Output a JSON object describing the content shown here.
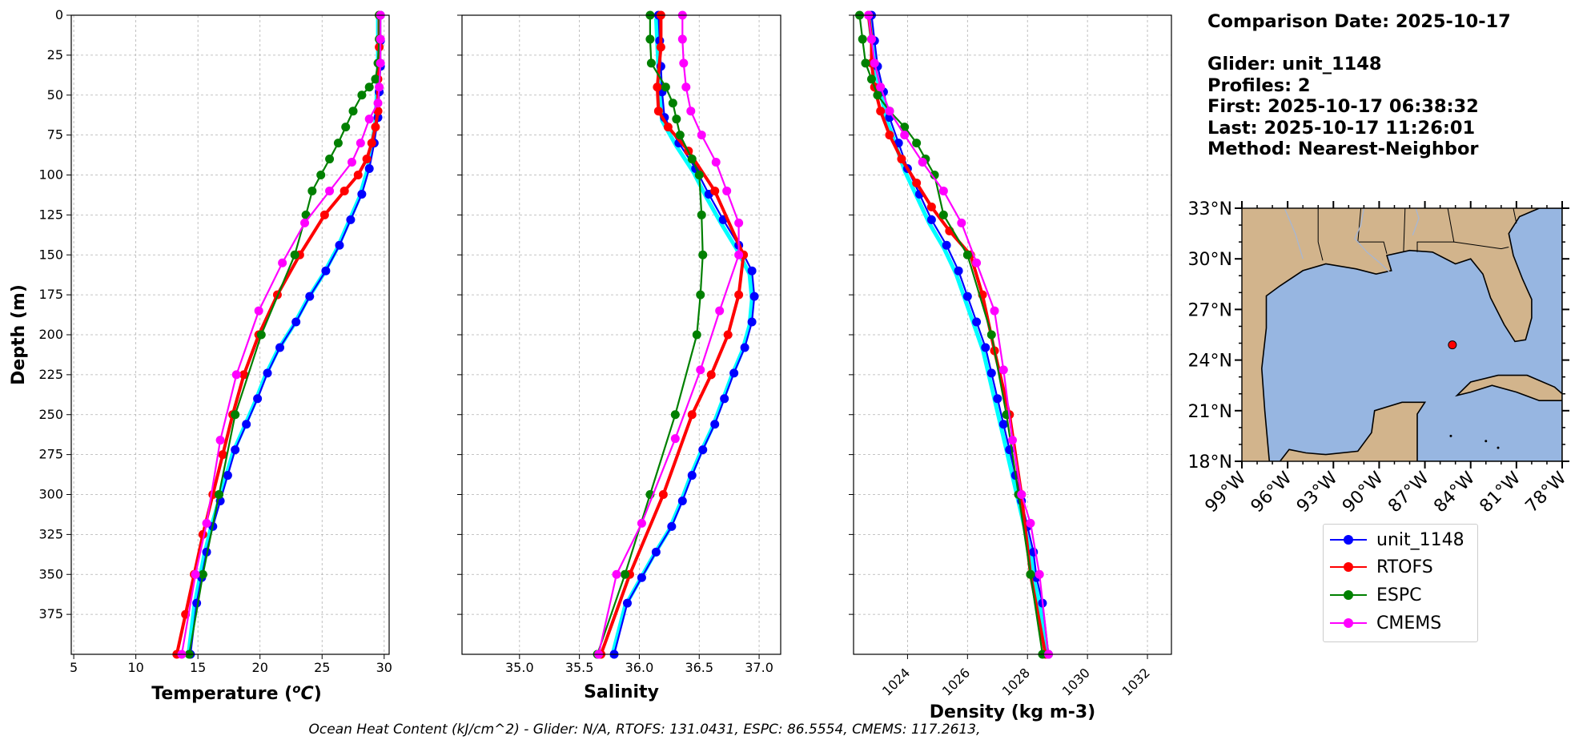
{
  "info": {
    "comparison": "Comparison Date: 2025-10-17",
    "glider": "Glider: unit_1148",
    "profiles": "Profiles: 2",
    "first": "First: 2025-10-17 06:38:32",
    "last": "Last: 2025-10-17 11:26:01",
    "method": "Method: Nearest-Neighbor"
  },
  "footer": "Ocean Heat Content (kJ/cm^2) - Glider: N/A,  RTOFS: 131.0431,  ESPC: 86.5554,  CMEMS: 117.2613,",
  "colors": {
    "unit_1148": "#0000ff",
    "glider_alt": "#00ffff",
    "RTOFS": "#ff0000",
    "ESPC": "#008000",
    "CMEMS": "#ff00ff",
    "land": "#d2b48c",
    "ocean": "#97b6e1"
  },
  "legend": {
    "items": [
      {
        "label": "unit_1148",
        "color": "#0000ff"
      },
      {
        "label": "RTOFS",
        "color": "#ff0000"
      },
      {
        "label": "ESPC",
        "color": "#008000"
      },
      {
        "label": "CMEMS",
        "color": "#ff00ff"
      }
    ]
  },
  "chart_data": [
    {
      "type": "line",
      "xlabel": "Temperature (°C)",
      "ylabel": "Depth (m)",
      "xlim": [
        4.8,
        30.4
      ],
      "ylim": [
        400,
        0
      ],
      "y_inverted": true,
      "grid": true,
      "xticks": [
        5,
        10,
        15,
        20,
        25,
        30
      ],
      "yticks": [
        0,
        25,
        50,
        75,
        100,
        125,
        150,
        175,
        200,
        225,
        250,
        275,
        300,
        325,
        350,
        375
      ],
      "series": [
        {
          "name": "unit_1148",
          "x": [
            29.7,
            29.7,
            29.7,
            29.6,
            29.5,
            29.2,
            28.8,
            28.2,
            27.3,
            26.4,
            25.3,
            24.0,
            22.9,
            21.6,
            20.6,
            19.8,
            18.9,
            18.0,
            17.4,
            16.8,
            16.2,
            15.7,
            15.3,
            14.9,
            14.4
          ],
          "y": [
            0,
            16,
            32,
            48,
            64,
            80,
            96,
            112,
            128,
            144,
            160,
            176,
            192,
            208,
            224,
            240,
            256,
            272,
            288,
            304,
            320,
            336,
            352,
            368,
            400
          ]
        },
        {
          "name": "RTOFS",
          "x": [
            29.6,
            29.6,
            29.5,
            29.5,
            29.3,
            29.0,
            28.6,
            27.9,
            26.8,
            25.2,
            23.2,
            21.4,
            19.9,
            18.7,
            17.8,
            17.0,
            16.2,
            15.4,
            14.7,
            14.0,
            13.3
          ],
          "y": [
            0,
            20,
            40,
            60,
            70,
            80,
            90,
            100,
            110,
            125,
            150,
            175,
            200,
            225,
            250,
            275,
            300,
            325,
            350,
            375,
            400
          ]
        },
        {
          "name": "ESPC",
          "x": [
            29.6,
            29.6,
            29.5,
            29.3,
            28.8,
            28.2,
            27.5,
            26.9,
            26.3,
            25.6,
            24.9,
            24.2,
            23.7,
            22.8,
            20.1,
            18.0,
            16.7,
            15.4,
            14.3
          ],
          "y": [
            0,
            15,
            30,
            40,
            45,
            50,
            60,
            70,
            80,
            90,
            100,
            110,
            125,
            150,
            200,
            250,
            300,
            350,
            400
          ]
        },
        {
          "name": "CMEMS",
          "x": [
            29.7,
            29.7,
            29.7,
            29.6,
            29.5,
            28.8,
            28.1,
            27.4,
            25.6,
            23.6,
            21.8,
            19.9,
            18.1,
            16.8,
            15.7,
            14.8,
            13.7
          ],
          "y": [
            0,
            15,
            30,
            45,
            55,
            65,
            80,
            92,
            110,
            130,
            155,
            185,
            225,
            266,
            318,
            350,
            400
          ]
        }
      ]
    },
    {
      "type": "line",
      "xlabel": "Salinity",
      "ylabel": "",
      "xlim": [
        34.52,
        37.18
      ],
      "ylim": [
        400,
        0
      ],
      "y_inverted": true,
      "grid": true,
      "xticks": [
        35.0,
        35.5,
        36.0,
        36.5,
        37.0
      ],
      "series": [
        {
          "name": "unit_1148",
          "x": [
            36.16,
            36.17,
            36.18,
            36.19,
            36.21,
            36.33,
            36.47,
            36.58,
            36.7,
            36.83,
            36.94,
            36.96,
            36.94,
            36.88,
            36.79,
            36.71,
            36.63,
            36.53,
            36.44,
            36.36,
            36.27,
            36.14,
            36.02,
            35.9,
            35.79
          ],
          "y": [
            0,
            16,
            32,
            48,
            64,
            80,
            96,
            112,
            128,
            144,
            160,
            176,
            192,
            208,
            224,
            240,
            256,
            272,
            288,
            304,
            320,
            336,
            352,
            368,
            400
          ]
        },
        {
          "name": "RTOFS",
          "x": [
            36.18,
            36.18,
            36.15,
            36.16,
            36.24,
            36.41,
            36.63,
            36.87,
            36.83,
            36.74,
            36.6,
            36.44,
            36.2,
            35.92,
            35.68
          ],
          "y": [
            0,
            20,
            45,
            60,
            70,
            85,
            110,
            150,
            175,
            200,
            225,
            250,
            300,
            350,
            400
          ]
        },
        {
          "name": "ESPC",
          "x": [
            36.09,
            36.09,
            36.1,
            36.22,
            36.28,
            36.31,
            36.34,
            36.44,
            36.5,
            36.52,
            36.53,
            36.51,
            36.48,
            36.3,
            36.09,
            35.88,
            35.65
          ],
          "y": [
            0,
            15,
            30,
            45,
            55,
            65,
            75,
            90,
            100,
            125,
            150,
            175,
            200,
            250,
            300,
            350,
            400
          ]
        },
        {
          "name": "CMEMS",
          "x": [
            36.36,
            36.36,
            36.37,
            36.39,
            36.43,
            36.52,
            36.64,
            36.73,
            36.83,
            36.83,
            36.67,
            36.51,
            36.3,
            36.02,
            35.81,
            35.66
          ],
          "y": [
            0,
            15,
            30,
            45,
            60,
            75,
            92,
            110,
            130,
            150,
            185,
            222,
            265,
            318,
            350,
            400
          ]
        }
      ]
    },
    {
      "type": "line",
      "xlabel": "Density (kg m-3)",
      "ylabel": "",
      "xlim": [
        1022.2,
        1032.8
      ],
      "ylim": [
        400,
        0
      ],
      "y_inverted": true,
      "grid": true,
      "xticks": [
        1024,
        1026,
        1028,
        1030,
        1032
      ],
      "series": [
        {
          "name": "unit_1148",
          "x": [
            1022.8,
            1022.9,
            1023.0,
            1023.2,
            1023.4,
            1023.7,
            1024.0,
            1024.4,
            1024.8,
            1025.3,
            1025.7,
            1026.0,
            1026.3,
            1026.6,
            1026.8,
            1027.0,
            1027.2,
            1027.4,
            1027.6,
            1027.8,
            1028.0,
            1028.2,
            1028.3,
            1028.5,
            1028.7
          ],
          "y": [
            0,
            16,
            32,
            48,
            64,
            80,
            96,
            112,
            128,
            144,
            160,
            176,
            192,
            208,
            224,
            240,
            256,
            272,
            288,
            304,
            320,
            336,
            352,
            368,
            400
          ]
        },
        {
          "name": "RTOFS",
          "x": [
            1022.7,
            1022.8,
            1022.8,
            1022.9,
            1023.1,
            1023.4,
            1023.8,
            1024.3,
            1024.8,
            1025.4,
            1026.1,
            1026.5,
            1026.9,
            1027.4,
            1027.8,
            1028.1,
            1028.6
          ],
          "y": [
            0,
            15,
            30,
            45,
            60,
            75,
            90,
            105,
            120,
            135,
            150,
            175,
            210,
            250,
            300,
            350,
            400
          ]
        },
        {
          "name": "ESPC",
          "x": [
            1022.4,
            1022.5,
            1022.6,
            1022.8,
            1023.0,
            1023.4,
            1023.9,
            1024.3,
            1024.6,
            1024.9,
            1025.2,
            1026.0,
            1026.8,
            1027.3,
            1027.7,
            1028.1,
            1028.5
          ],
          "y": [
            0,
            15,
            30,
            40,
            50,
            60,
            70,
            80,
            90,
            100,
            125,
            150,
            200,
            250,
            300,
            350,
            400
          ]
        },
        {
          "name": "CMEMS",
          "x": [
            1022.7,
            1022.8,
            1022.9,
            1023.1,
            1023.4,
            1023.9,
            1024.5,
            1025.2,
            1025.8,
            1026.3,
            1026.9,
            1027.2,
            1027.5,
            1027.8,
            1028.1,
            1028.4,
            1028.7
          ],
          "y": [
            0,
            15,
            30,
            45,
            60,
            75,
            92,
            110,
            130,
            155,
            185,
            222,
            266,
            300,
            318,
            350,
            400
          ]
        }
      ]
    },
    {
      "type": "map",
      "lon_ticks": [
        "99°W",
        "96°W",
        "93°W",
        "90°W",
        "87°W",
        "84°W",
        "81°W",
        "78°W"
      ],
      "lat_ticks": [
        "33°N",
        "30°N",
        "27°N",
        "24°N",
        "21°N",
        "18°N"
      ],
      "lon_range": [
        -99,
        -78
      ],
      "lat_range": [
        18,
        33
      ],
      "glider_position": {
        "lon": -85.2,
        "lat": 24.9
      }
    }
  ]
}
